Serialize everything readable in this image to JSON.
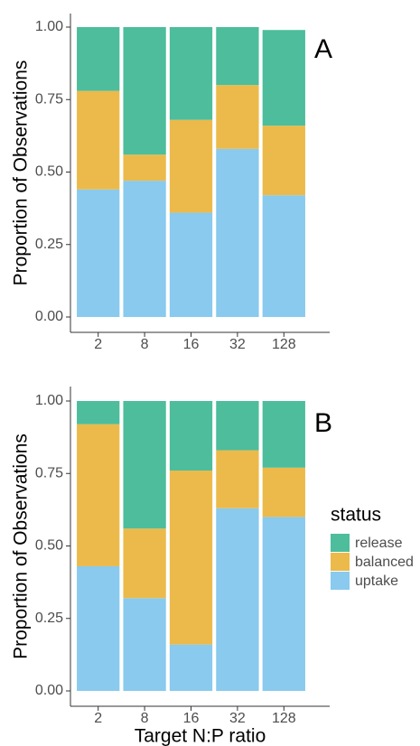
{
  "chart_data": [
    {
      "type": "stacked_bar",
      "annotation": "A",
      "ylabel": "Proportion of Observations",
      "categories": [
        "2",
        "8",
        "16",
        "32",
        "128"
      ],
      "series": [
        {
          "name": "uptake",
          "color": "#89caee",
          "values": [
            0.44,
            0.47,
            0.36,
            0.58,
            0.42
          ]
        },
        {
          "name": "balanced",
          "color": "#ebba4a",
          "values": [
            0.34,
            0.09,
            0.32,
            0.22,
            0.24
          ]
        },
        {
          "name": "release",
          "color": "#4dbd9c",
          "values": [
            0.22,
            0.44,
            0.32,
            0.2,
            0.33
          ]
        }
      ],
      "ylim": [
        0,
        1
      ],
      "yticks": [
        {
          "value": 0,
          "label": "0.00"
        },
        {
          "value": 0.25,
          "label": "0.25"
        },
        {
          "value": 0.5,
          "label": "0.50"
        },
        {
          "value": 0.75,
          "label": "0.75"
        },
        {
          "value": 1,
          "label": "1.00"
        }
      ]
    },
    {
      "type": "stacked_bar",
      "annotation": "B",
      "ylabel": "Proportion of Observations",
      "xlabel": "Target N:P ratio",
      "legend_title": "status",
      "legend": "right",
      "categories": [
        "2",
        "8",
        "16",
        "32",
        "128"
      ],
      "series": [
        {
          "name": "uptake",
          "color": "#89caee",
          "values": [
            0.43,
            0.32,
            0.16,
            0.63,
            0.6
          ]
        },
        {
          "name": "balanced",
          "color": "#ebba4a",
          "values": [
            0.49,
            0.24,
            0.6,
            0.2,
            0.17
          ]
        },
        {
          "name": "release",
          "color": "#4dbd9c",
          "values": [
            0.08,
            0.44,
            0.24,
            0.17,
            0.23
          ]
        }
      ],
      "ylim": [
        0,
        1
      ],
      "yticks": [
        {
          "value": 0,
          "label": "0.00"
        },
        {
          "value": 0.25,
          "label": "0.25"
        },
        {
          "value": 0.5,
          "label": "0.50"
        },
        {
          "value": 0.75,
          "label": "0.75"
        },
        {
          "value": 1,
          "label": "1.00"
        }
      ]
    }
  ]
}
